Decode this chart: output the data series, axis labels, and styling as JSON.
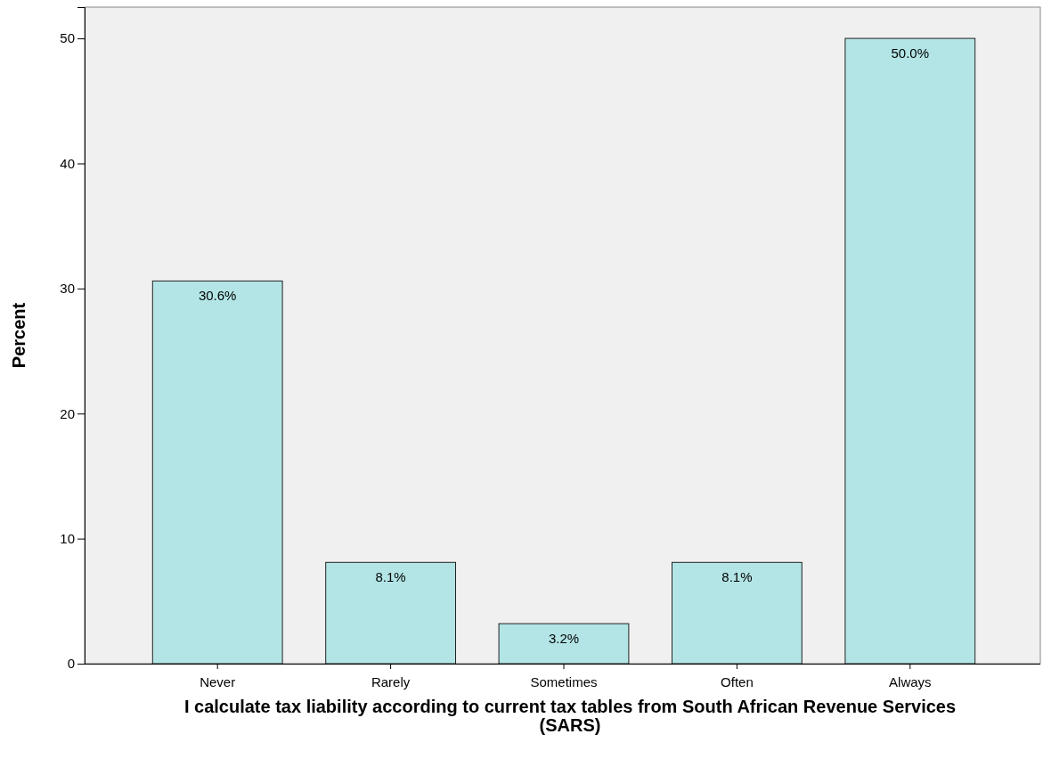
{
  "chart_data": {
    "type": "bar",
    "xlabel": "I calculate tax liability according to current tax tables from South African Revenue Services (SARS)",
    "ylabel": "Percent",
    "categories": [
      "Never",
      "Rarely",
      "Sometimes",
      "Often",
      "Always"
    ],
    "values": [
      30.6,
      8.1,
      3.2,
      8.1,
      50.0
    ],
    "value_labels": [
      "30.6%",
      "8.1%",
      "3.2%",
      "8.1%",
      "50.0%"
    ],
    "color": "#b3e5e6",
    "ylim": [
      0,
      52.5
    ],
    "yticks": [
      0,
      10,
      20,
      30,
      40,
      50
    ],
    "grid": false
  }
}
